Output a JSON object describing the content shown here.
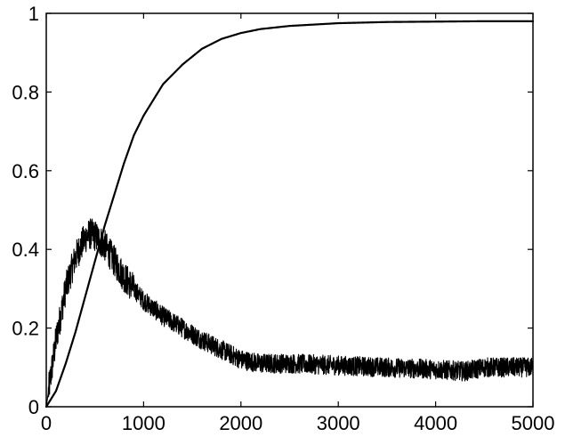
{
  "chart_data": {
    "type": "line",
    "title": "",
    "xlabel": "",
    "ylabel": "",
    "xlim": [
      0,
      5000
    ],
    "ylim": [
      0,
      1
    ],
    "grid": false,
    "legend": "none",
    "x_ticks": [
      "0",
      "1000",
      "2000",
      "3000",
      "4000",
      "5000"
    ],
    "y_ticks": [
      "0",
      "0.2",
      "0.4",
      "0.6",
      "0.8",
      "1"
    ],
    "line_color": "#000000",
    "series": [
      {
        "style": "smooth",
        "x": [
          0,
          100,
          200,
          300,
          400,
          500,
          600,
          700,
          800,
          900,
          1000,
          1200,
          1400,
          1600,
          1800,
          2000,
          2200,
          2500,
          3000,
          3500,
          4000,
          4500,
          5000
        ],
        "y": [
          0,
          0.04,
          0.11,
          0.19,
          0.28,
          0.37,
          0.46,
          0.54,
          0.62,
          0.69,
          0.74,
          0.82,
          0.87,
          0.91,
          0.935,
          0.95,
          0.96,
          0.968,
          0.975,
          0.978,
          0.979,
          0.98,
          0.98
        ]
      },
      {
        "style": "noisy",
        "noise_amplitude": 0.025,
        "x": [
          0,
          100,
          200,
          300,
          400,
          450,
          500,
          600,
          700,
          800,
          1000,
          1200,
          1400,
          1600,
          1800,
          2000,
          2200,
          2500,
          3000,
          3500,
          4000,
          4300,
          4500,
          5000
        ],
        "y": [
          0,
          0.17,
          0.3,
          0.38,
          0.43,
          0.44,
          0.435,
          0.41,
          0.37,
          0.33,
          0.27,
          0.23,
          0.2,
          0.17,
          0.145,
          0.12,
          0.11,
          0.11,
          0.105,
          0.1,
          0.095,
          0.09,
          0.1,
          0.1
        ]
      }
    ]
  }
}
